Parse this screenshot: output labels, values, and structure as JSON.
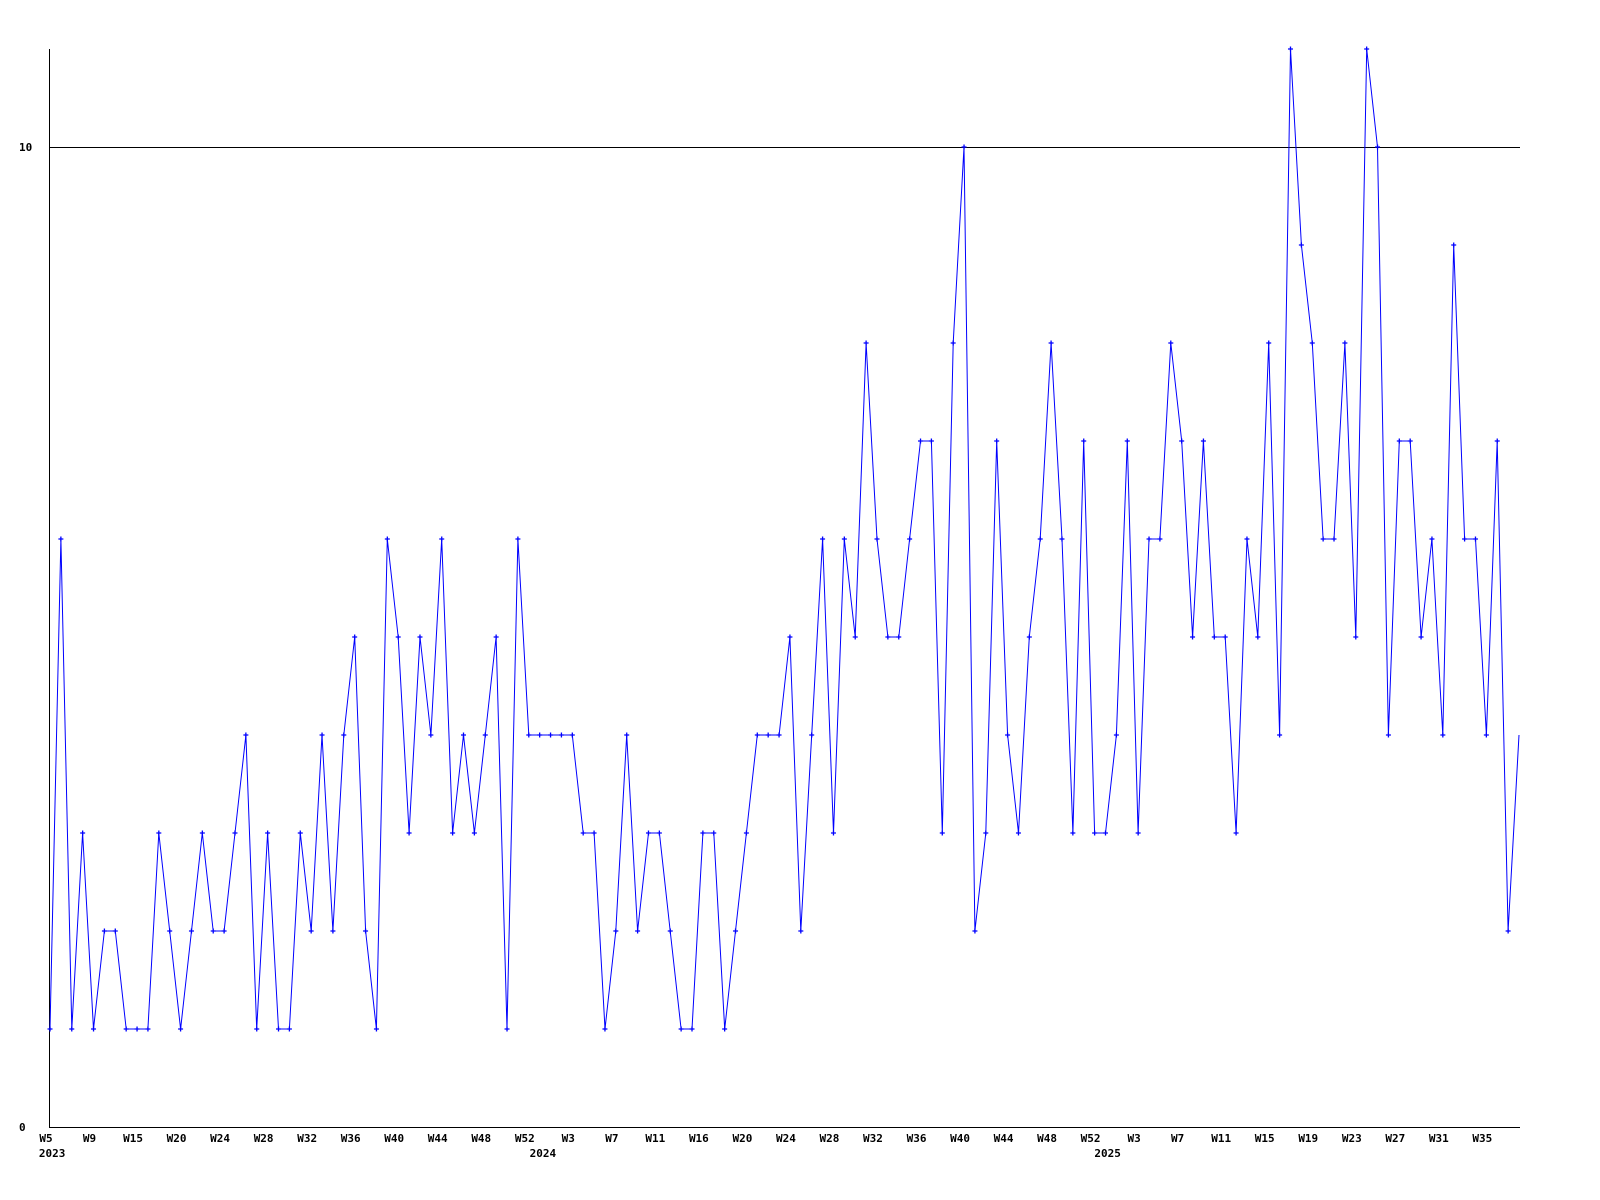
{
  "chart_data": {
    "type": "line",
    "title": "",
    "xlabel": "",
    "ylabel": "",
    "ylim": [
      0,
      11
    ],
    "y_ticks": [
      0,
      10
    ],
    "grid": "horizontal line at 10 only",
    "series_color": "#0000ff",
    "axis_color": "#000000",
    "x_tick_labels": [
      "W5",
      "W9",
      "W15",
      "W20",
      "W24",
      "W28",
      "W32",
      "W36",
      "W40",
      "W44",
      "W48",
      "W52",
      "W3",
      "W7",
      "W11",
      "W16",
      "W20",
      "W24",
      "W28",
      "W32",
      "W36",
      "W40",
      "W44",
      "W48",
      "W52",
      "W3",
      "W7",
      "W11",
      "W15",
      "W19",
      "W23",
      "W27",
      "W31",
      "W35"
    ],
    "year_labels": [
      "2023",
      "2024",
      "2025"
    ],
    "values": [
      1,
      6,
      1,
      3,
      1,
      2,
      2,
      1,
      1,
      1,
      3,
      2,
      1,
      2,
      3,
      2,
      2,
      3,
      4,
      1,
      3,
      1,
      1,
      3,
      2,
      4,
      2,
      4,
      5,
      2,
      1,
      6,
      5,
      3,
      5,
      4,
      6,
      3,
      4,
      3,
      4,
      5,
      1,
      6,
      4,
      4,
      4,
      4,
      4,
      3,
      3,
      1,
      2,
      4,
      2,
      3,
      3,
      2,
      1,
      1,
      3,
      3,
      1,
      2,
      3,
      4,
      4,
      4,
      5,
      2,
      4,
      6,
      3,
      6,
      5,
      8,
      6,
      5,
      5,
      6,
      7,
      7,
      3,
      8,
      10,
      2,
      3,
      7,
      4,
      3,
      5,
      6,
      8,
      6,
      3,
      7,
      3,
      3,
      4,
      7,
      3,
      6,
      6,
      8,
      7,
      5,
      7,
      5,
      5,
      3,
      6,
      5,
      8,
      4,
      11,
      9,
      8,
      6,
      6,
      8,
      5,
      11,
      10,
      4,
      7,
      7,
      5,
      6,
      4,
      9,
      6,
      6,
      4,
      7,
      2,
      4
    ]
  }
}
